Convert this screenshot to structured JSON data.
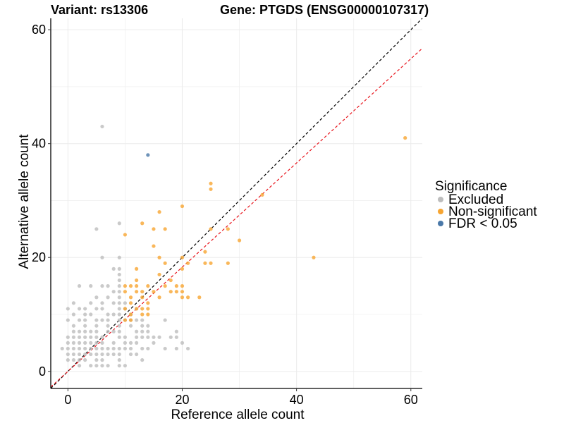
{
  "chart_data": {
    "type": "scatter",
    "title_left": "Variant: rs13306",
    "title_right": "Gene: PTGDS (ENSG00000107317)",
    "xlabel": "Reference allele count",
    "ylabel": "Alternative allele count",
    "xlim": [
      -3,
      62
    ],
    "ylim": [
      -3,
      62
    ],
    "xticks": [
      0,
      20,
      40,
      60
    ],
    "yticks": [
      0,
      20,
      40,
      60
    ],
    "grid": true,
    "legend": {
      "title": "Significance",
      "position": "right",
      "entries": [
        {
          "label": "Excluded",
          "color": "#bdbdbd"
        },
        {
          "label": "Non-significant",
          "color": "#f7a531"
        },
        {
          "label": "FDR < 0.05",
          "color": "#4a78a8"
        }
      ]
    },
    "reference_lines": [
      {
        "name": "identity",
        "slope": 1.0,
        "intercept": 0,
        "color": "#000000",
        "style": "dashed"
      },
      {
        "name": "fit",
        "slope": 0.915,
        "intercept": 0,
        "color": "#e8141c",
        "style": "dashed"
      }
    ],
    "series": [
      {
        "name": "Excluded",
        "color": "#bdbdbd",
        "points": [
          [
            6,
            43
          ],
          [
            5,
            25
          ],
          [
            9,
            26
          ],
          [
            6,
            20
          ],
          [
            9,
            20
          ],
          [
            9,
            18
          ],
          [
            8,
            18
          ],
          [
            9,
            17
          ],
          [
            9,
            16
          ],
          [
            7,
            15
          ],
          [
            2,
            15
          ],
          [
            4,
            15
          ],
          [
            6,
            15
          ],
          [
            9,
            15
          ],
          [
            8,
            14
          ],
          [
            9,
            14
          ],
          [
            5,
            13
          ],
          [
            7,
            13
          ],
          [
            9,
            13
          ],
          [
            1,
            12
          ],
          [
            4,
            12
          ],
          [
            6,
            12
          ],
          [
            8,
            12
          ],
          [
            9,
            12
          ],
          [
            10,
            12
          ],
          [
            0,
            11
          ],
          [
            2,
            11
          ],
          [
            3,
            11
          ],
          [
            5,
            11
          ],
          [
            6,
            11
          ],
          [
            9,
            11
          ],
          [
            10,
            11
          ],
          [
            12,
            11
          ],
          [
            1,
            10
          ],
          [
            3,
            10
          ],
          [
            4,
            10
          ],
          [
            7,
            10
          ],
          [
            8,
            10
          ],
          [
            9,
            10
          ],
          [
            11,
            10
          ],
          [
            0,
            9
          ],
          [
            2,
            9
          ],
          [
            3,
            9
          ],
          [
            5,
            9
          ],
          [
            6,
            9
          ],
          [
            7,
            9
          ],
          [
            9,
            9
          ],
          [
            10,
            9
          ],
          [
            11,
            9
          ],
          [
            12,
            9
          ],
          [
            13,
            9
          ],
          [
            17,
            9
          ],
          [
            1,
            8
          ],
          [
            3,
            8
          ],
          [
            5,
            8
          ],
          [
            7,
            8
          ],
          [
            9,
            8
          ],
          [
            11,
            8
          ],
          [
            13,
            8
          ],
          [
            14,
            8
          ],
          [
            1,
            7
          ],
          [
            2,
            7
          ],
          [
            3,
            7
          ],
          [
            4,
            7
          ],
          [
            5,
            7
          ],
          [
            7,
            7
          ],
          [
            8,
            7
          ],
          [
            9,
            7
          ],
          [
            12,
            7
          ],
          [
            13,
            7
          ],
          [
            14,
            7
          ],
          [
            19,
            7
          ],
          [
            0,
            6
          ],
          [
            1,
            6
          ],
          [
            2,
            6
          ],
          [
            3,
            6
          ],
          [
            4,
            6
          ],
          [
            5,
            6
          ],
          [
            6,
            6
          ],
          [
            9,
            6
          ],
          [
            10,
            6
          ],
          [
            12,
            6
          ],
          [
            13,
            6
          ],
          [
            14,
            6
          ],
          [
            15,
            6
          ],
          [
            16,
            6
          ],
          [
            18,
            6
          ],
          [
            19,
            6
          ],
          [
            0,
            5
          ],
          [
            1,
            5
          ],
          [
            2,
            5
          ],
          [
            3,
            5
          ],
          [
            4,
            5
          ],
          [
            5,
            5
          ],
          [
            6,
            5
          ],
          [
            8,
            5
          ],
          [
            10,
            5
          ],
          [
            11,
            5
          ],
          [
            12,
            5
          ],
          [
            15,
            5
          ],
          [
            20,
            5
          ],
          [
            -1,
            4
          ],
          [
            0,
            4
          ],
          [
            1,
            4
          ],
          [
            2,
            4
          ],
          [
            3,
            4
          ],
          [
            4,
            4
          ],
          [
            5,
            4
          ],
          [
            6,
            4
          ],
          [
            7,
            4
          ],
          [
            8,
            4
          ],
          [
            9,
            4
          ],
          [
            10,
            4
          ],
          [
            11,
            4
          ],
          [
            13,
            4
          ],
          [
            14,
            4
          ],
          [
            17,
            4
          ],
          [
            19,
            4
          ],
          [
            21,
            4
          ],
          [
            0,
            3
          ],
          [
            1,
            3
          ],
          [
            2,
            3
          ],
          [
            3,
            3
          ],
          [
            4,
            3
          ],
          [
            5,
            3
          ],
          [
            6,
            3
          ],
          [
            7,
            3
          ],
          [
            8,
            3
          ],
          [
            9,
            3
          ],
          [
            11,
            3
          ],
          [
            12,
            3
          ],
          [
            0,
            2
          ],
          [
            1,
            2
          ],
          [
            2,
            2
          ],
          [
            3,
            2
          ],
          [
            5,
            2
          ],
          [
            6,
            2
          ],
          [
            9,
            2
          ],
          [
            13,
            2
          ],
          [
            2,
            1
          ],
          [
            4,
            1
          ],
          [
            5,
            1
          ],
          [
            6,
            1
          ],
          [
            7,
            1
          ],
          [
            9,
            1
          ],
          [
            10,
            1
          ]
        ]
      },
      {
        "name": "Non-significant",
        "color": "#f7a531",
        "points": [
          [
            59,
            41
          ],
          [
            25,
            33
          ],
          [
            25,
            32
          ],
          [
            34,
            31
          ],
          [
            20,
            29
          ],
          [
            16,
            28
          ],
          [
            13,
            26
          ],
          [
            17,
            25
          ],
          [
            25,
            25
          ],
          [
            28,
            25
          ],
          [
            10,
            24
          ],
          [
            30,
            23
          ],
          [
            15,
            25
          ],
          [
            43,
            20
          ],
          [
            15,
            22
          ],
          [
            16,
            20
          ],
          [
            20,
            20
          ],
          [
            17,
            19
          ],
          [
            24,
            21
          ],
          [
            24,
            19
          ],
          [
            25,
            19
          ],
          [
            28,
            19
          ],
          [
            21,
            19
          ],
          [
            12,
            18
          ],
          [
            20,
            18
          ],
          [
            16,
            17
          ],
          [
            12,
            16
          ],
          [
            18,
            16
          ],
          [
            10,
            15
          ],
          [
            11,
            15
          ],
          [
            12,
            15
          ],
          [
            14,
            15
          ],
          [
            17,
            15
          ],
          [
            19,
            15
          ],
          [
            20,
            15
          ],
          [
            18,
            14
          ],
          [
            19,
            14
          ],
          [
            20,
            14
          ],
          [
            10,
            14
          ],
          [
            12,
            14
          ],
          [
            13,
            14
          ],
          [
            15,
            14
          ],
          [
            16,
            13
          ],
          [
            20,
            13
          ],
          [
            21,
            13
          ],
          [
            23,
            13
          ],
          [
            11,
            13
          ],
          [
            13,
            13
          ],
          [
            14,
            12
          ],
          [
            11,
            12
          ],
          [
            12,
            11
          ],
          [
            13,
            11
          ],
          [
            14,
            11
          ],
          [
            10,
            11
          ],
          [
            11,
            10
          ],
          [
            13,
            10
          ],
          [
            14,
            10
          ],
          [
            11,
            9
          ],
          [
            10,
            9
          ]
        ]
      },
      {
        "name": "FDR < 0.05",
        "color": "#4a78a8",
        "points": [
          [
            14,
            38
          ]
        ]
      }
    ]
  }
}
